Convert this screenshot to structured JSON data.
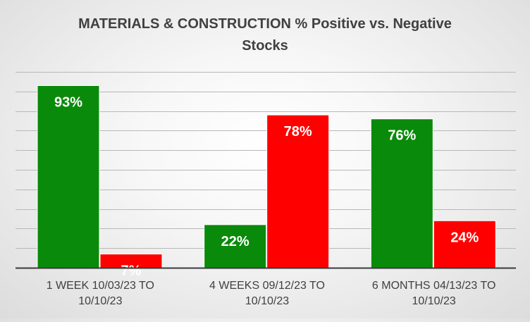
{
  "chart_data": {
    "type": "bar",
    "title_lines": [
      "MATERIALS & CONSTRUCTION % Positive vs. Negative",
      "Stocks"
    ],
    "categories": [
      [
        "1 WEEK 10/03/23 TO",
        "10/10/23"
      ],
      [
        "4 WEEKS 09/12/23 TO",
        "10/10/23"
      ],
      [
        "6 MONTHS 04/13/23 TO",
        "10/10/23"
      ]
    ],
    "series": [
      {
        "values": [
          93,
          22,
          76
        ],
        "labels": [
          "93%",
          "22%",
          "76%"
        ],
        "color": "#0a8a0a"
      },
      {
        "values": [
          7,
          78,
          24
        ],
        "labels": [
          "7%",
          "78%",
          "24%"
        ],
        "color": "#ff0000"
      }
    ],
    "ylim": [
      0,
      100
    ],
    "grid": true,
    "legend": "none"
  }
}
